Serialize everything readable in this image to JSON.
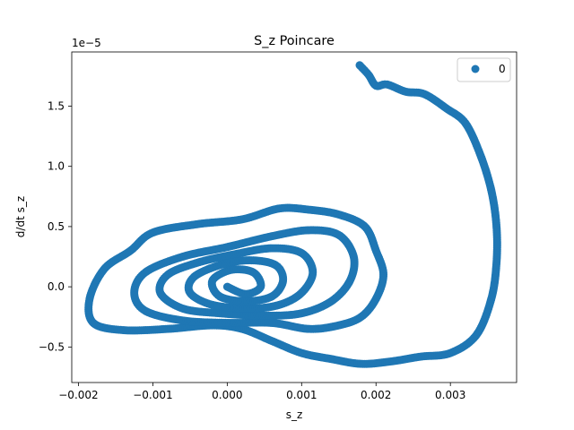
{
  "chart_data": {
    "type": "scatter",
    "title": "S_z Poincare",
    "xlabel": "s_z",
    "ylabel": "d/dt s_z",
    "y_offset_text": "1e−5",
    "xlim": [
      -0.00209,
      0.00389
    ],
    "ylim": [
      -0.795,
      1.95
    ],
    "xticks": [
      -0.002,
      -0.001,
      0.0,
      0.001,
      0.002,
      0.003
    ],
    "xtick_labels": [
      "−0.002",
      "−0.001",
      "0.000",
      "0.001",
      "0.002",
      "0.003"
    ],
    "yticks": [
      -0.5,
      0.0,
      0.5,
      1.0,
      1.5
    ],
    "ytick_labels": [
      "−0.5",
      "0.0",
      "0.5",
      "1.0",
      "1.5"
    ],
    "grid": false,
    "legend": {
      "position": "top-right",
      "entries": [
        "0"
      ]
    },
    "series": [
      {
        "name": "0",
        "color": "#1f77b4",
        "path_keypoints": [
          [
            0.00178,
            1.84
          ],
          [
            0.0019,
            1.76
          ],
          [
            0.002,
            1.67
          ],
          [
            0.00215,
            1.68
          ],
          [
            0.0024,
            1.62
          ],
          [
            0.00265,
            1.6
          ],
          [
            0.00295,
            1.48
          ],
          [
            0.0032,
            1.36
          ],
          [
            0.0034,
            1.1
          ],
          [
            0.00355,
            0.8
          ],
          [
            0.00362,
            0.5
          ],
          [
            0.00362,
            0.2
          ],
          [
            0.00355,
            -0.1
          ],
          [
            0.00335,
            -0.4
          ],
          [
            0.003,
            -0.55
          ],
          [
            0.0026,
            -0.58
          ],
          [
            0.0022,
            -0.62
          ],
          [
            0.0018,
            -0.64
          ],
          [
            0.0014,
            -0.6
          ],
          [
            0.001,
            -0.55
          ],
          [
            0.0006,
            -0.45
          ],
          [
            0.0002,
            -0.35
          ],
          [
            -0.0002,
            -0.32
          ],
          [
            -0.0008,
            -0.35
          ],
          [
            -0.0014,
            -0.36
          ],
          [
            -0.0018,
            -0.3
          ],
          [
            -0.00185,
            -0.1
          ],
          [
            -0.00165,
            0.15
          ],
          [
            -0.0013,
            0.3
          ],
          [
            -0.001,
            0.45
          ],
          [
            -0.0004,
            0.52
          ],
          [
            0.0002,
            0.56
          ],
          [
            0.0007,
            0.65
          ],
          [
            0.0011,
            0.64
          ],
          [
            0.0015,
            0.6
          ],
          [
            0.00185,
            0.5
          ],
          [
            0.002,
            0.3
          ],
          [
            0.0021,
            0.1
          ],
          [
            0.002,
            -0.1
          ],
          [
            0.0018,
            -0.25
          ],
          [
            0.0015,
            -0.32
          ],
          [
            0.0011,
            -0.35
          ],
          [
            0.0006,
            -0.3
          ],
          [
            0.0,
            -0.3
          ],
          [
            -0.0006,
            -0.28
          ],
          [
            -0.0011,
            -0.2
          ],
          [
            -0.00125,
            -0.05
          ],
          [
            -0.0011,
            0.12
          ],
          [
            -0.0006,
            0.25
          ],
          [
            0.0,
            0.33
          ],
          [
            0.0006,
            0.42
          ],
          [
            0.0011,
            0.47
          ],
          [
            0.0015,
            0.43
          ],
          [
            0.0017,
            0.25
          ],
          [
            0.00165,
            0.05
          ],
          [
            0.0014,
            -0.12
          ],
          [
            0.001,
            -0.22
          ],
          [
            0.0005,
            -0.24
          ],
          [
            -0.0001,
            -0.22
          ],
          [
            -0.0006,
            -0.18
          ],
          [
            -0.0009,
            -0.05
          ],
          [
            -0.0008,
            0.1
          ],
          [
            -0.0004,
            0.2
          ],
          [
            0.0001,
            0.27
          ],
          [
            0.0006,
            0.32
          ],
          [
            0.001,
            0.28
          ],
          [
            0.00115,
            0.12
          ],
          [
            0.001,
            -0.05
          ],
          [
            0.0007,
            -0.15
          ],
          [
            0.0003,
            -0.18
          ],
          [
            -0.0002,
            -0.15
          ],
          [
            -0.0005,
            -0.05
          ],
          [
            -0.00045,
            0.08
          ],
          [
            -0.0001,
            0.18
          ],
          [
            0.0003,
            0.22
          ],
          [
            0.00065,
            0.18
          ],
          [
            0.00075,
            0.05
          ],
          [
            0.0006,
            -0.08
          ],
          [
            0.00025,
            -0.12
          ],
          [
            -0.0001,
            -0.08
          ],
          [
            -0.0002,
            0.05
          ],
          [
            5e-05,
            0.14
          ],
          [
            0.00035,
            0.12
          ],
          [
            0.00045,
            0.0
          ],
          [
            0.00025,
            -0.06
          ],
          [
            0.0,
            0.0
          ]
        ]
      }
    ]
  }
}
